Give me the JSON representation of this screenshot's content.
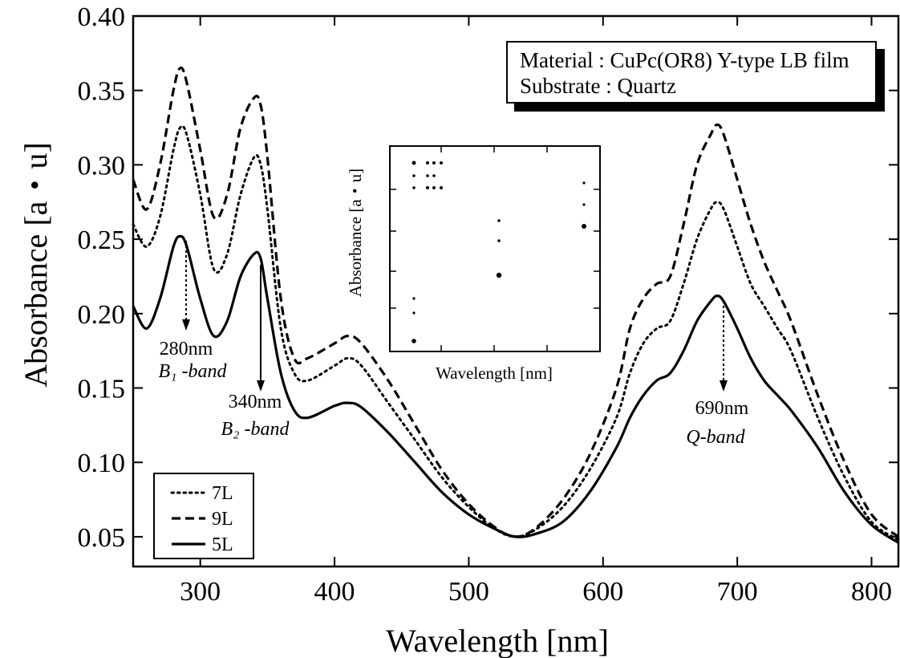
{
  "chart_data": {
    "type": "line",
    "title": "",
    "xlabel": "Wavelength [nm]",
    "ylabel": "Absorbance [a・u]",
    "xlim": [
      250,
      820
    ],
    "ylim": [
      0.03,
      0.4
    ],
    "x_ticks": [
      300,
      400,
      500,
      600,
      700,
      800
    ],
    "x_tick_labels": [
      "300",
      "400",
      "500",
      "600",
      "700",
      "800"
    ],
    "y_ticks": [
      0.05,
      0.1,
      0.15,
      0.2,
      0.25,
      0.3,
      0.35,
      0.4
    ],
    "y_tick_labels": [
      "0.05",
      "0.10",
      "0.15",
      "0.20",
      "0.25",
      "0.30",
      "0.35",
      "0.40"
    ],
    "grid": false,
    "legend_position": "bottom-left",
    "series": [
      {
        "name": "7L",
        "style": "dotted",
        "x": [
          250,
          260,
          270,
          280,
          285,
          290,
          300,
          310,
          320,
          330,
          340,
          345,
          350,
          360,
          370,
          380,
          400,
          410,
          420,
          440,
          460,
          480,
          500,
          520,
          535,
          550,
          570,
          590,
          610,
          620,
          630,
          640,
          650,
          660,
          670,
          680,
          685,
          690,
          700,
          710,
          720,
          730,
          740,
          760,
          780,
          800,
          820
        ],
        "y": [
          0.26,
          0.245,
          0.265,
          0.31,
          0.325,
          0.32,
          0.28,
          0.23,
          0.24,
          0.28,
          0.305,
          0.3,
          0.27,
          0.19,
          0.16,
          0.155,
          0.165,
          0.17,
          0.165,
          0.14,
          0.115,
          0.09,
          0.07,
          0.055,
          0.05,
          0.055,
          0.07,
          0.095,
          0.13,
          0.16,
          0.18,
          0.19,
          0.195,
          0.22,
          0.25,
          0.27,
          0.275,
          0.27,
          0.245,
          0.22,
          0.205,
          0.19,
          0.175,
          0.13,
          0.09,
          0.06,
          0.048
        ]
      },
      {
        "name": "9L",
        "style": "dashed",
        "x": [
          250,
          260,
          270,
          280,
          285,
          290,
          300,
          310,
          320,
          330,
          340,
          345,
          350,
          360,
          370,
          380,
          400,
          410,
          420,
          440,
          460,
          480,
          500,
          520,
          535,
          550,
          570,
          590,
          610,
          620,
          630,
          640,
          650,
          660,
          670,
          680,
          685,
          690,
          700,
          710,
          720,
          730,
          740,
          760,
          780,
          800,
          820
        ],
        "y": [
          0.29,
          0.27,
          0.3,
          0.35,
          0.365,
          0.355,
          0.31,
          0.265,
          0.28,
          0.325,
          0.345,
          0.34,
          0.305,
          0.21,
          0.17,
          0.17,
          0.18,
          0.185,
          0.18,
          0.155,
          0.125,
          0.095,
          0.072,
          0.056,
          0.05,
          0.056,
          0.075,
          0.105,
          0.15,
          0.19,
          0.21,
          0.22,
          0.225,
          0.26,
          0.3,
          0.32,
          0.327,
          0.32,
          0.29,
          0.26,
          0.235,
          0.215,
          0.195,
          0.145,
          0.1,
          0.065,
          0.05
        ]
      },
      {
        "name": "5L",
        "style": "solid",
        "x": [
          250,
          260,
          270,
          280,
          285,
          290,
          300,
          310,
          320,
          330,
          340,
          345,
          350,
          360,
          370,
          380,
          400,
          410,
          420,
          440,
          460,
          480,
          500,
          520,
          535,
          550,
          570,
          590,
          610,
          620,
          630,
          640,
          650,
          660,
          670,
          680,
          685,
          690,
          700,
          710,
          720,
          730,
          740,
          760,
          780,
          800,
          820
        ],
        "y": [
          0.205,
          0.19,
          0.21,
          0.245,
          0.252,
          0.245,
          0.21,
          0.185,
          0.195,
          0.225,
          0.24,
          0.237,
          0.21,
          0.16,
          0.135,
          0.13,
          0.138,
          0.14,
          0.137,
          0.12,
          0.1,
          0.08,
          0.065,
          0.055,
          0.05,
          0.052,
          0.06,
          0.08,
          0.11,
          0.13,
          0.145,
          0.155,
          0.16,
          0.175,
          0.195,
          0.208,
          0.212,
          0.208,
          0.19,
          0.17,
          0.155,
          0.145,
          0.135,
          0.11,
          0.08,
          0.058,
          0.046
        ]
      }
    ],
    "annotations": [
      {
        "wavelength": "280nm",
        "band": "B₁ -band"
      },
      {
        "wavelength": "340nm",
        "band": "B₂ -band"
      },
      {
        "wavelength": "690nm",
        "band": "Q-band"
      }
    ],
    "info_box": {
      "line1": "Material : CuPc(OR8) Y-type LB film",
      "line2": "Substrate : Quartz"
    },
    "inset": {
      "xlabel": "Wavelength [nm]",
      "ylabel": "Absorbance [a・u]"
    }
  }
}
